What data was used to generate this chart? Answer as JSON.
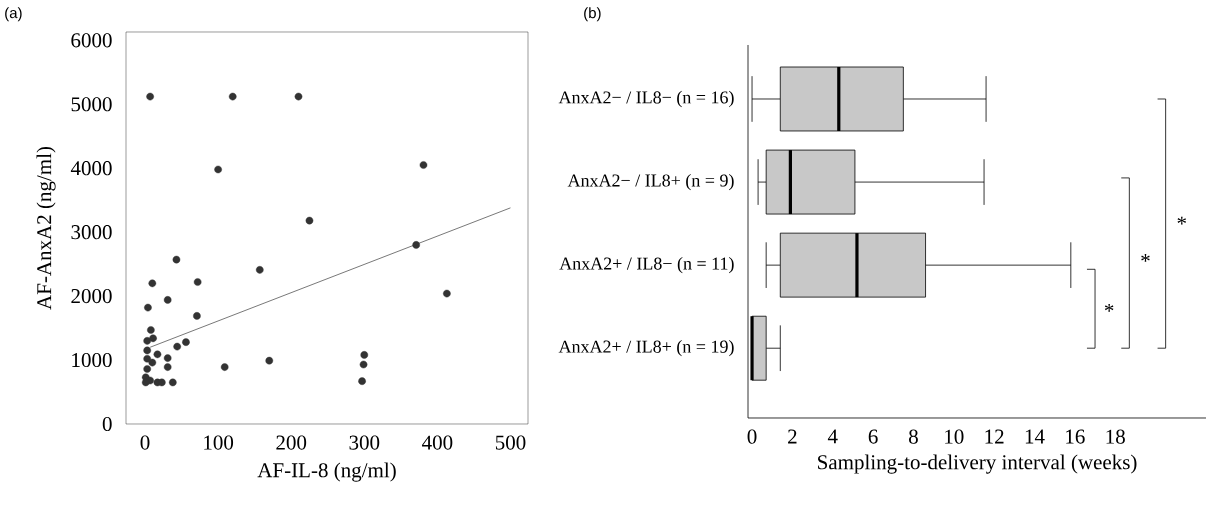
{
  "chart_data": [
    {
      "type": "scatter",
      "xlabel": "AF-IL-8 (ng/ml)",
      "ylabel": "AF-AnxA2 (ng/ml)",
      "annotations": [
        "(a)"
      ],
      "xlim": [
        -26,
        524
      ],
      "ylim": [
        0,
        6130
      ],
      "xticks": [
        0,
        100,
        200,
        300,
        400,
        500
      ],
      "yticks": [
        0,
        1000,
        2000,
        3000,
        4000,
        5000,
        6000
      ],
      "series": [
        {
          "type": "scatter",
          "marker": "circle",
          "color": "#333333",
          "x": [
            7,
            120,
            210,
            100,
            381,
            225,
            371,
            413,
            43,
            157,
            10,
            72,
            31,
            4,
            71,
            8,
            3,
            11,
            44,
            56,
            3,
            17,
            31,
            31,
            3,
            10,
            3,
            1,
            7,
            17,
            23,
            38,
            1,
            109,
            170,
            300,
            299,
            297
          ],
          "values": [
            5120,
            5120,
            5120,
            3980,
            4050,
            3180,
            2800,
            2040,
            2570,
            2410,
            2200,
            2220,
            1940,
            1820,
            1690,
            1470,
            1300,
            1340,
            1210,
            1280,
            1150,
            1090,
            1030,
            890,
            1020,
            960,
            860,
            730,
            680,
            650,
            650,
            650,
            650,
            890,
            990,
            1080,
            930,
            670
          ]
        },
        {
          "type": "line",
          "color": "#555555",
          "x": [
            7,
            500
          ],
          "values": [
            1200,
            3380
          ]
        }
      ]
    },
    {
      "type": "box",
      "orientation": "horizontal",
      "color": "#c8c8c8",
      "xlabel": "Sampling-to-delivery interval (weeks)",
      "annotations": [
        "(b)",
        "*",
        "*",
        "*"
      ],
      "categories": [
        "AnxA2− / IL8− (n = 16)",
        "AnxA2− / IL8+ (n = 9)",
        "AnxA2+ / IL8− (n = 11)",
        "AnxA2+ / IL8+ (n = 19)"
      ],
      "xlim": [
        -0.2,
        22.5
      ],
      "xticks": [
        0,
        2,
        4,
        6,
        8,
        10,
        12,
        14,
        16,
        18
      ],
      "boxes": [
        {
          "low": 0,
          "q1": 1.4,
          "median": 4.3,
          "q3": 7.5,
          "high": 11.6
        },
        {
          "low": 0.3,
          "q1": 0.7,
          "median": 1.9,
          "q3": 5.1,
          "high": 11.5
        },
        {
          "low": 0.7,
          "q1": 1.4,
          "median": 5.2,
          "q3": 8.6,
          "high": 15.8
        },
        {
          "low": 0,
          "q1": 0,
          "median": 0,
          "q3": 0.7,
          "high": 1.4
        }
      ]
    }
  ]
}
